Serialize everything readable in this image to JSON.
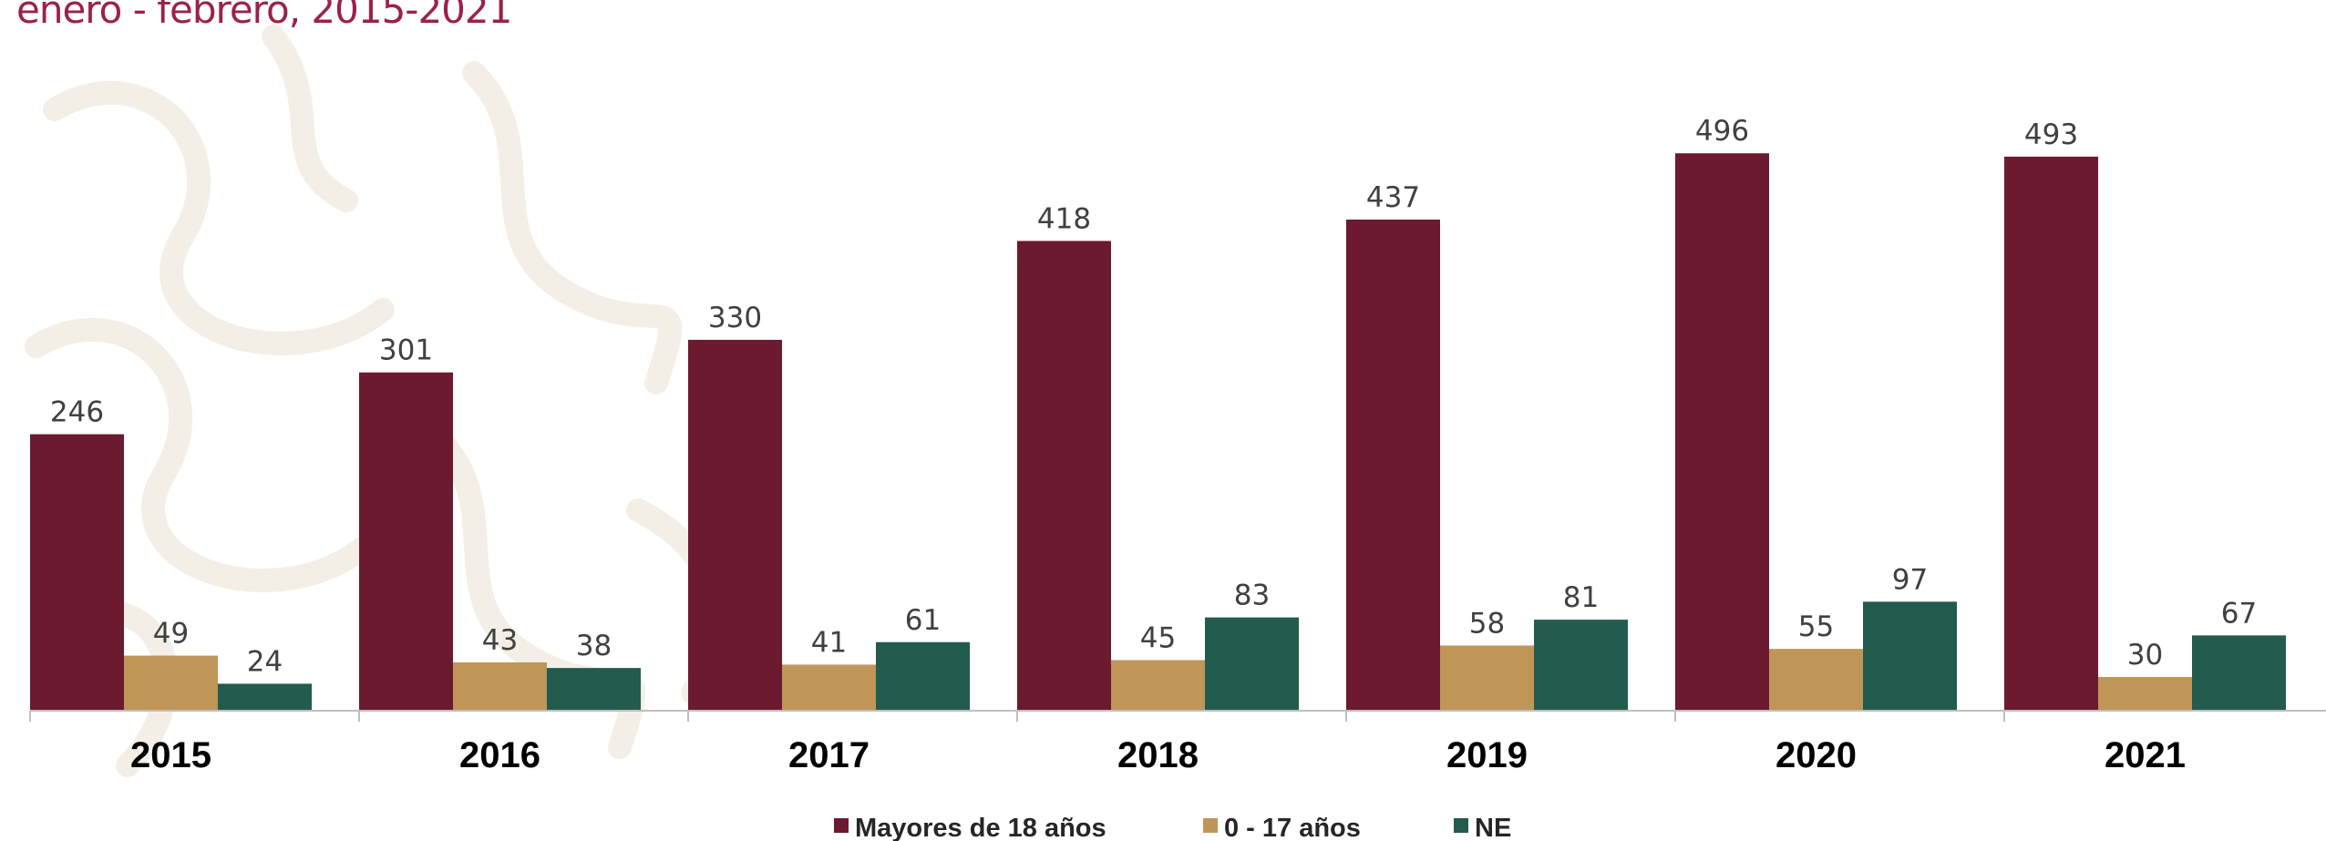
{
  "chart_data": {
    "type": "bar",
    "title": "enero - febrero, 2015-2021",
    "categories": [
      "2015",
      "2016",
      "2017",
      "2018",
      "2019",
      "2020",
      "2021"
    ],
    "series": [
      {
        "name": "Mayores de 18 años",
        "color": "#6b1a30",
        "values": [
          246,
          301,
          330,
          418,
          437,
          496,
          493
        ]
      },
      {
        "name": "0 - 17 años",
        "color": "#bf9558",
        "values": [
          49,
          43,
          41,
          45,
          58,
          55,
          30
        ]
      },
      {
        "name": "NE",
        "color": "#235b4e",
        "values": [
          24,
          38,
          61,
          83,
          81,
          97,
          67
        ]
      }
    ],
    "ylim": [
      0,
      500
    ],
    "grid": false,
    "legend": "bottom-center",
    "data_labels": true
  }
}
